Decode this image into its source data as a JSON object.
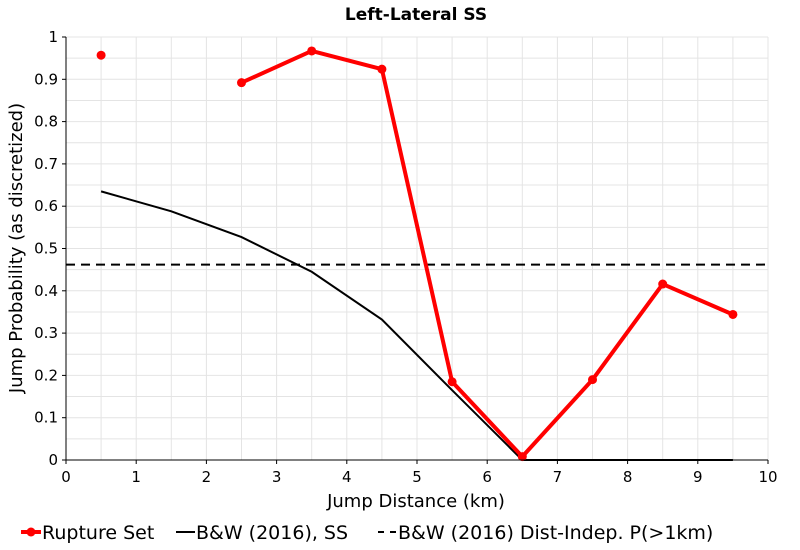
{
  "chart_data": {
    "type": "line",
    "title": "Left-Lateral SS",
    "xlabel": "Jump Distance (km)",
    "ylabel": "Jump Probability (as discretized)",
    "xlim": [
      0,
      10
    ],
    "ylim": [
      0,
      1
    ],
    "x_ticks": [
      "0",
      "1",
      "2",
      "3",
      "4",
      "5",
      "6",
      "7",
      "8",
      "9",
      "10"
    ],
    "y_ticks": [
      "0",
      "0.1",
      "0.2",
      "0.3",
      "0.4",
      "0.5",
      "0.6",
      "0.7",
      "0.8",
      "0.9",
      "1"
    ],
    "grid": true,
    "legend_position": "bottom",
    "series": [
      {
        "name": "Rupture Set",
        "color": "#ff0000",
        "style": "line-with-markers",
        "points": [
          {
            "x": 0.5,
            "y": 0.957
          },
          {
            "x": 2.5,
            "y": 0.892
          },
          {
            "x": 3.5,
            "y": 0.967
          },
          {
            "x": 4.5,
            "y": 0.924
          },
          {
            "x": 5.5,
            "y": 0.185
          },
          {
            "x": 6.5,
            "y": 0.008
          },
          {
            "x": 7.5,
            "y": 0.19
          },
          {
            "x": 8.5,
            "y": 0.416
          },
          {
            "x": 9.5,
            "y": 0.344
          }
        ],
        "segments": [
          [
            0
          ],
          [
            1,
            2,
            3,
            4,
            5,
            6,
            7,
            8
          ]
        ]
      },
      {
        "name": "B&W (2016), SS",
        "color": "#000000",
        "style": "solid",
        "points": [
          {
            "x": 0.5,
            "y": 0.635
          },
          {
            "x": 1.5,
            "y": 0.588
          },
          {
            "x": 2.5,
            "y": 0.527
          },
          {
            "x": 3.5,
            "y": 0.445
          },
          {
            "x": 4.5,
            "y": 0.332
          },
          {
            "x": 5.5,
            "y": 0.165
          },
          {
            "x": 6.5,
            "y": 0.0
          },
          {
            "x": 7.5,
            "y": 0.0
          },
          {
            "x": 8.5,
            "y": 0.0
          },
          {
            "x": 9.5,
            "y": 0.0
          }
        ]
      },
      {
        "name": "B&W (2016) Dist-Indep. P(>1km)",
        "color": "#000000",
        "style": "dashed",
        "points": [
          {
            "x": 0,
            "y": 0.462
          },
          {
            "x": 10,
            "y": 0.462
          }
        ]
      }
    ]
  }
}
